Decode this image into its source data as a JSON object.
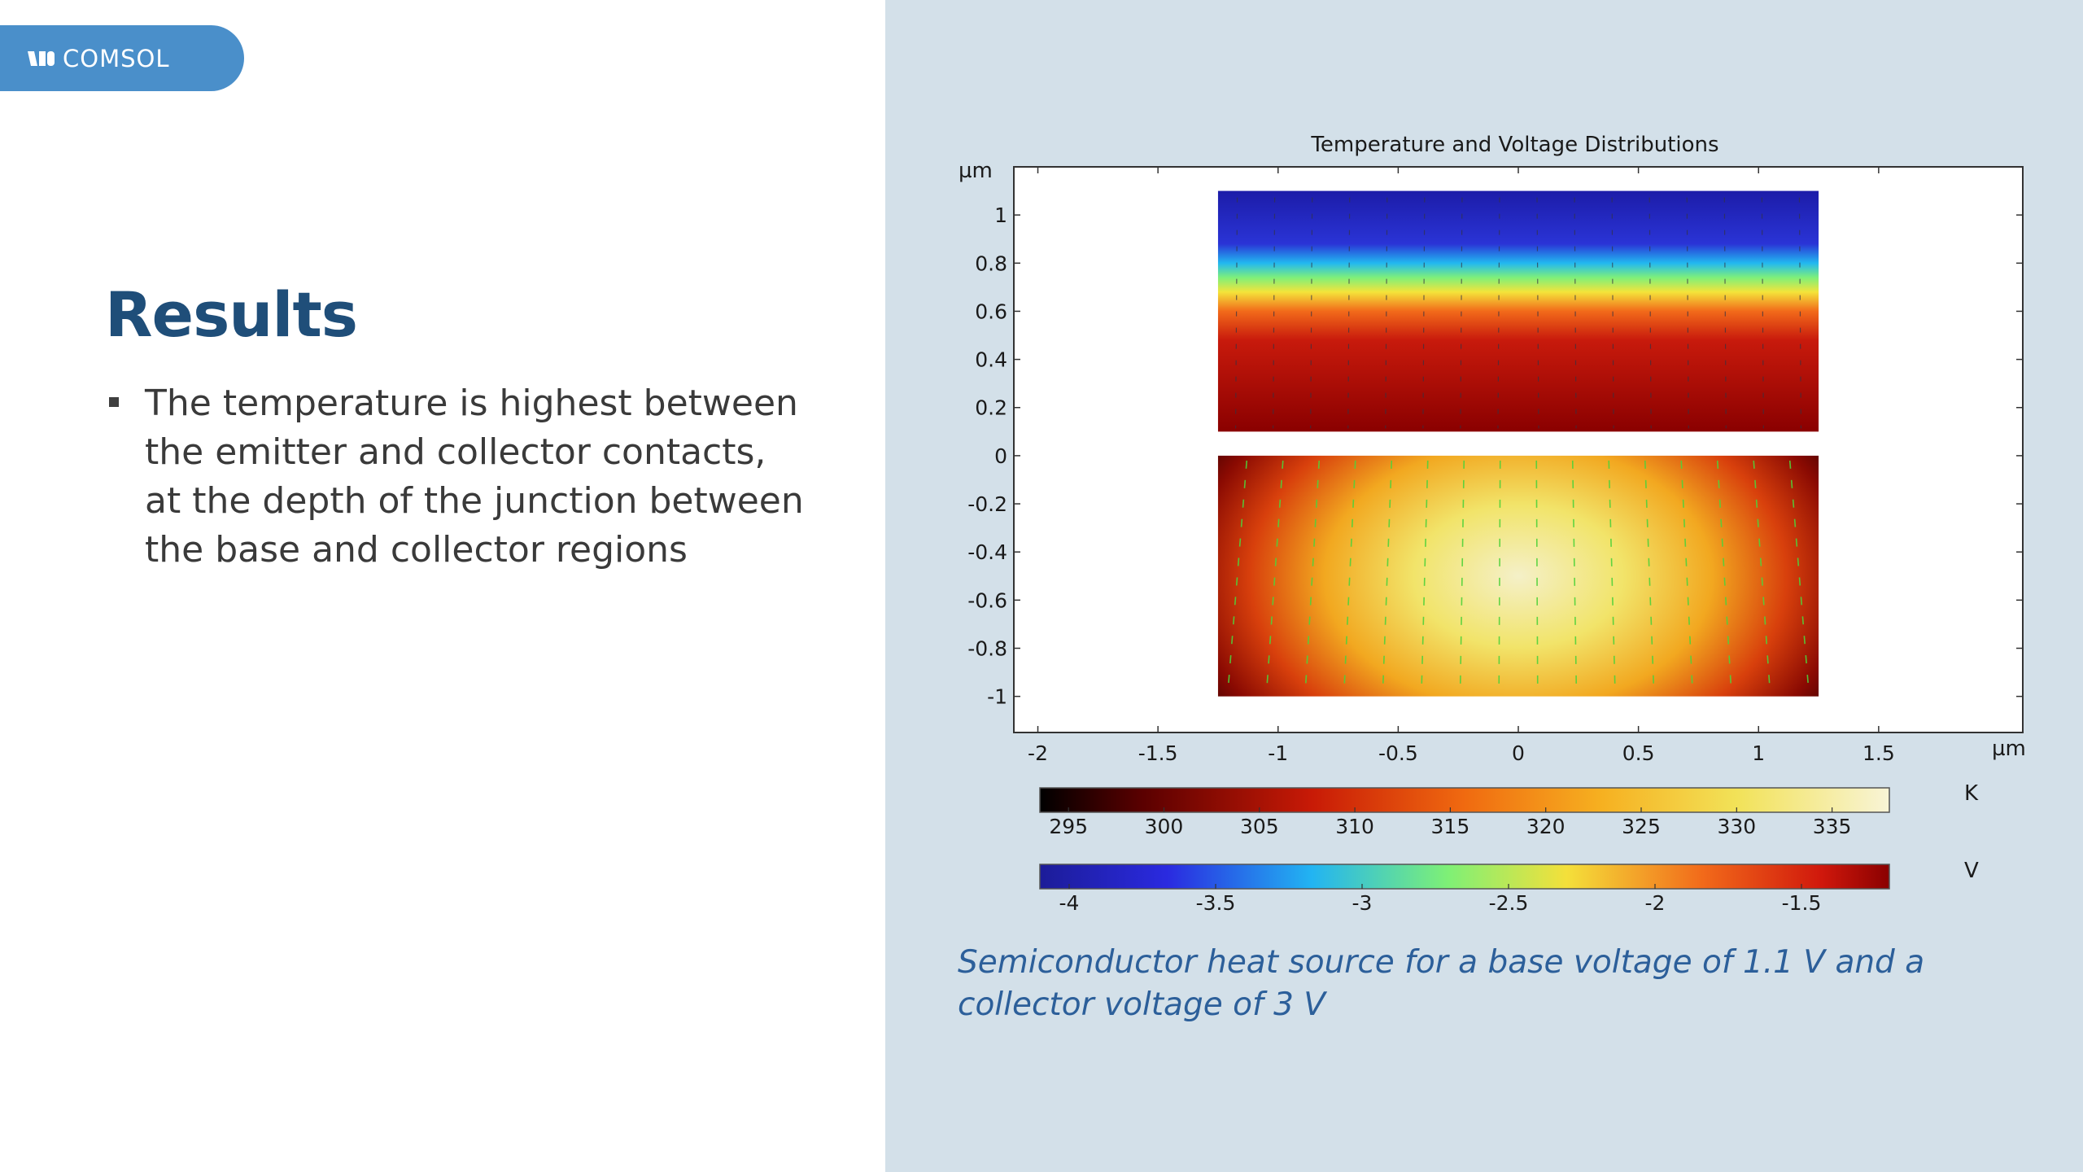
{
  "logo": {
    "text": "COMSOL"
  },
  "slide": {
    "title": "Results",
    "bullets": [
      "The temperature is highest between the emitter and collector contacts, at the depth of the junction between the base and collector regions"
    ],
    "caption": "Semiconductor heat source for a base voltage of 1.1 V and a collector voltage of 3 V"
  },
  "chart_data": {
    "type": "heatmap",
    "title": "Temperature and Voltage Distributions",
    "x_unit": "µm",
    "y_unit": "µm",
    "xlim": [
      -2.1,
      2.1
    ],
    "ylim": [
      -1.15,
      1.2
    ],
    "x_ticks": [
      "-2",
      "-1.5",
      "-1",
      "-0.5",
      "0",
      "0.5",
      "1",
      "1.5"
    ],
    "y_ticks": [
      "1",
      "0.8",
      "0.6",
      "0.4",
      "0.2",
      "0",
      "-0.2",
      "-0.4",
      "-0.6",
      "-0.8",
      "-1"
    ],
    "regions": [
      {
        "quantity": "voltage",
        "x": [
          -1.25,
          1.25
        ],
        "y": [
          0.1,
          1.1
        ]
      },
      {
        "quantity": "temperature",
        "x": [
          -1.25,
          1.25
        ],
        "y": [
          -1.0,
          0.0
        ]
      }
    ],
    "colorbars": [
      {
        "unit": "K",
        "min": 293.5,
        "max": 338,
        "ticks": [
          "295",
          "300",
          "305",
          "310",
          "315",
          "320",
          "325",
          "330",
          "335"
        ],
        "colormap": "heat"
      },
      {
        "unit": "V",
        "min": -4.1,
        "max": -1.2,
        "ticks": [
          "-4",
          "-3.5",
          "-3",
          "-2.5",
          "-2",
          "-1.5"
        ],
        "colormap": "rainbow"
      }
    ]
  }
}
